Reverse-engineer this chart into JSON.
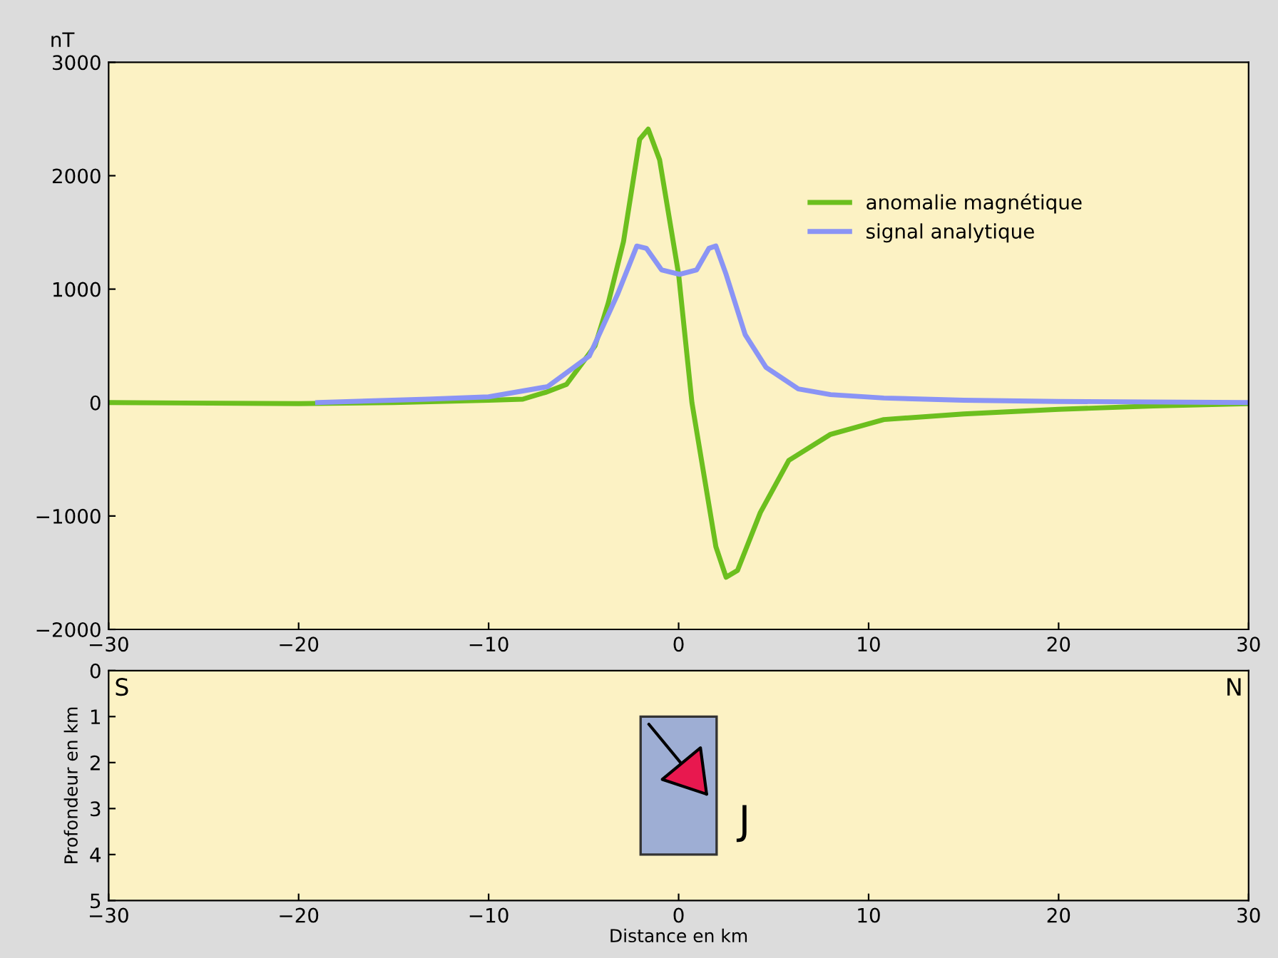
{
  "chart_data": [
    {
      "type": "line",
      "ylabel": "nT",
      "xlim": [
        -30,
        30
      ],
      "ylim": [
        -2000,
        3000
      ],
      "xticks": [
        {
          "value": -30,
          "label": "−30"
        },
        {
          "value": -20,
          "label": "−20"
        },
        {
          "value": -10,
          "label": "−10"
        },
        0,
        10,
        20,
        30
      ],
      "yticks": [
        {
          "value": -2000,
          "label": "−2000"
        },
        {
          "value": -1000,
          "label": "−1000"
        },
        0,
        1000,
        2000,
        3000
      ],
      "grid": false,
      "legend": "top right",
      "marker": "none",
      "line_style": "solid",
      "series": [
        {
          "name": "anomalie magnétique",
          "color": "#6cbf1e",
          "x": [
            -30,
            -20,
            -15,
            -10,
            -8.2,
            -7,
            -5.9,
            -4.4,
            -3.7,
            -2.9,
            -2.05,
            -1.6,
            -1,
            0,
            0.7,
            1.96,
            2.5,
            3.1,
            4.3,
            5.8,
            8,
            10.8,
            15,
            20,
            25,
            30
          ],
          "values": [
            0,
            -10,
            0,
            20,
            30,
            90,
            160,
            500,
            880,
            1420,
            2320,
            2410,
            2140,
            1130,
            0,
            -1270,
            -1540,
            -1480,
            -970,
            -510,
            -280,
            -150,
            -100,
            -60,
            -30,
            -10
          ]
        },
        {
          "name": "signal analytique",
          "color": "#8a94f5",
          "x": [
            -19,
            -13.2,
            -10,
            -6.9,
            -4.7,
            -3.2,
            -2.2,
            -1.7,
            -0.9,
            0.05,
            0.95,
            1.6,
            1.96,
            2.5,
            3.5,
            4.6,
            6.3,
            8,
            10.8,
            15,
            20,
            30
          ],
          "values": [
            0,
            30,
            50,
            140,
            410,
            960,
            1380,
            1360,
            1170,
            1130,
            1170,
            1360,
            1380,
            1130,
            600,
            310,
            120,
            70,
            40,
            20,
            10,
            0
          ]
        }
      ]
    },
    {
      "type": "bar",
      "xlabel": "Distance en km",
      "ylabel": "Profondeur en km",
      "xlim": [
        -30,
        30
      ],
      "ylim": [
        5,
        0
      ],
      "xticks": [
        {
          "value": -30,
          "label": "−30"
        },
        {
          "value": -20,
          "label": "−20"
        },
        {
          "value": -10,
          "label": "−10"
        },
        0,
        10,
        20,
        30
      ],
      "yticks": [
        0,
        1,
        2,
        3,
        4,
        5
      ],
      "grid": false,
      "series": [
        {
          "color": "#9eaed4",
          "x": [
            0
          ],
          "base": [
            1
          ],
          "values": [
            3
          ]
        }
      ],
      "annotations": [
        "S",
        "N",
        {
          "text": "J",
          "x": 1.7,
          "y": 2.8
        }
      ]
    }
  ]
}
